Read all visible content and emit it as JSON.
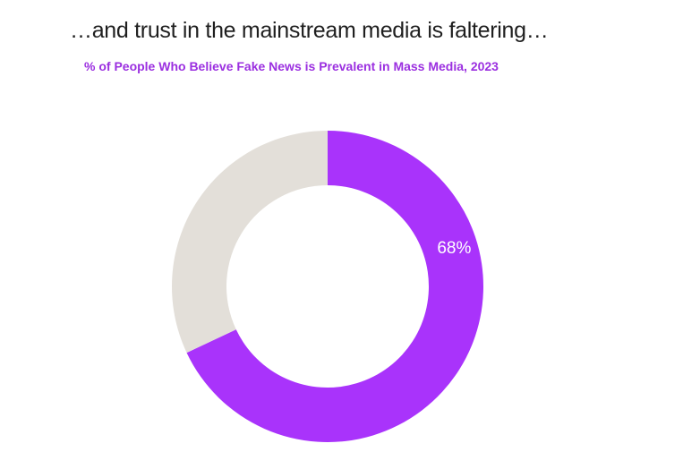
{
  "header": {
    "headline": "…and trust in the mainstream media is faltering…"
  },
  "chart_data": {
    "type": "pie",
    "variant": "donut",
    "title": "% of People Who Believe Fake News is Prevalent in Mass Media, 2023",
    "slices": [
      {
        "value": 68,
        "label": "68%",
        "color": "#a933fb"
      },
      {
        "value": 32,
        "label": "",
        "color": "#e3dfd9"
      }
    ],
    "start_angle_deg": 0,
    "direction": "clockwise",
    "legend": "none"
  }
}
